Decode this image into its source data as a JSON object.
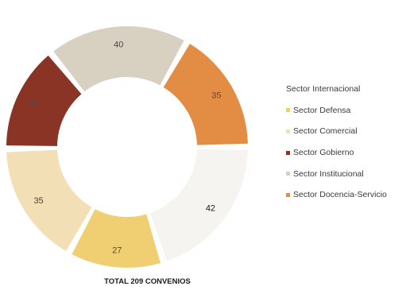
{
  "chart_data": {
    "type": "pie",
    "style": "donut",
    "categories": [
      "Sector Internacional",
      "Sector Defensa",
      "Sector Comercial",
      "Sector Gobierno",
      "Sector Institucional",
      "Sector Docencia-Servicio"
    ],
    "values": [
      42,
      27,
      35,
      30,
      40,
      35
    ],
    "colors": [
      "#f5f4f0",
      "#f0cf72",
      "#f2dfb5",
      "#8a3426",
      "#d8d0c1",
      "#e28d43"
    ],
    "value_label_colors": [
      "#1a1a1a",
      "#5a4a2c",
      "#4a4440",
      "#4a4a4a",
      "#4a4440",
      "#6a4a30"
    ],
    "title": "",
    "total_label": "TOTAL 209 CONVENIOS",
    "legend_position": "right"
  }
}
